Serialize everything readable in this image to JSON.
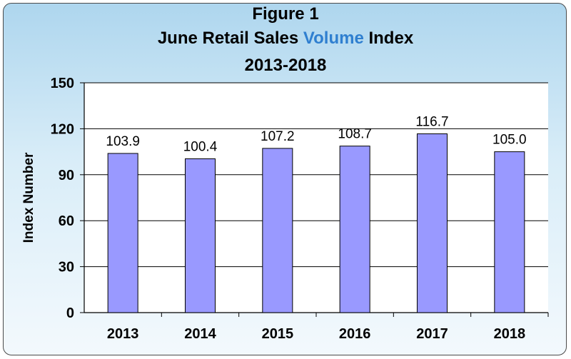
{
  "chart_data": {
    "type": "bar",
    "title": "Figure 1",
    "subtitle_parts": [
      "June Retail Sales ",
      "Volume",
      " Index"
    ],
    "subtitle_2": "2013-2018",
    "xlabel": "",
    "ylabel": "Index  Number",
    "categories": [
      "2013",
      "2014",
      "2015",
      "2016",
      "2017",
      "2018"
    ],
    "values": [
      103.9,
      100.4,
      107.2,
      108.7,
      116.7,
      105.0
    ],
    "data_labels": [
      "103.9",
      "100.4",
      "107.2",
      "108.7",
      "116.7",
      "105.0"
    ],
    "ylim": [
      0,
      150
    ],
    "yticks": [
      0,
      30,
      60,
      90,
      120,
      150
    ],
    "grid": true,
    "colors": {
      "bar_fill": "#9999ff",
      "bar_stroke": "#000000",
      "accent_word": "#2f7fd0",
      "plot_bg": "#ffffff"
    }
  }
}
